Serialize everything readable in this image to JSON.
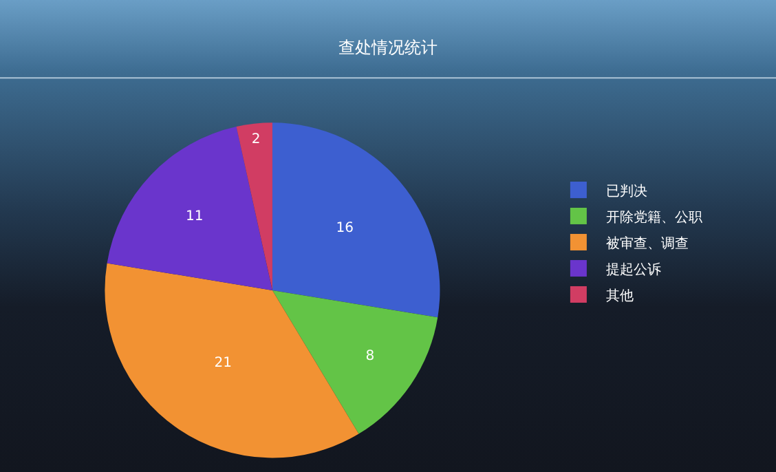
{
  "chart_data": {
    "type": "pie",
    "title": "查处情况统计",
    "categories": [
      "已判决",
      "开除党籍、公职",
      "被审查、调查",
      "提起公诉",
      "其他"
    ],
    "values": [
      16,
      8,
      21,
      11,
      2
    ],
    "colors": [
      "#3d5fd0",
      "#63c447",
      "#f29233",
      "#6a35cc",
      "#d13d63"
    ],
    "data_labels": true,
    "legend": "right"
  }
}
